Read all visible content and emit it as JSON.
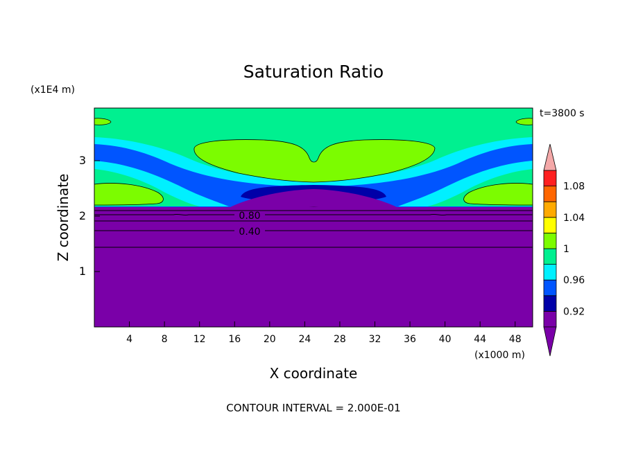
{
  "chart_data": {
    "type": "heatmap",
    "subtype": "filled-contour",
    "title": "Saturation Ratio",
    "time_label": "t=3800 s",
    "xlabel": "X coordinate",
    "ylabel": "Z coordinate",
    "x_unit": "(x1000 m)",
    "y_unit": "(x1E4 m)",
    "xlim": [
      0,
      50
    ],
    "ylim": [
      0,
      3.95
    ],
    "x_ticks": [
      4,
      8,
      12,
      16,
      20,
      24,
      28,
      32,
      36,
      40,
      44,
      48
    ],
    "y_ticks": [
      1,
      2,
      3
    ],
    "contour_labels": [
      "0.80",
      "0.40"
    ],
    "contour_interval_text": "CONTOUR INTERVAL = 2.000E-01",
    "colorbar": {
      "levels": [
        0.9,
        0.92,
        0.94,
        0.96,
        0.98,
        1.0,
        1.02,
        1.04,
        1.06,
        1.08,
        1.1
      ],
      "tick_labels": [
        "1.08",
        "1.04",
        "1",
        "0.96",
        "0.92"
      ],
      "tick_values": [
        1.08,
        1.04,
        1.0,
        0.96,
        0.92
      ],
      "colors": [
        "#7a00a8",
        "#0000a8",
        "#0055ff",
        "#00f0ff",
        "#00f090",
        "#7cfc00",
        "#ffff00",
        "#ffaa00",
        "#ff6600",
        "#ff2020"
      ],
      "under_color": "#7a00a8",
      "over_color": "#f4a8a8"
    },
    "field_values": {
      "lower_layer_z_below_2.15": "< 0.90",
      "upper_background": 0.99,
      "central_upper_lobe": 1.01,
      "side_lower_lobes": 1.01,
      "cyan_band": 0.97,
      "blue_band": 0.95,
      "dark_blue_core": 0.93
    }
  }
}
